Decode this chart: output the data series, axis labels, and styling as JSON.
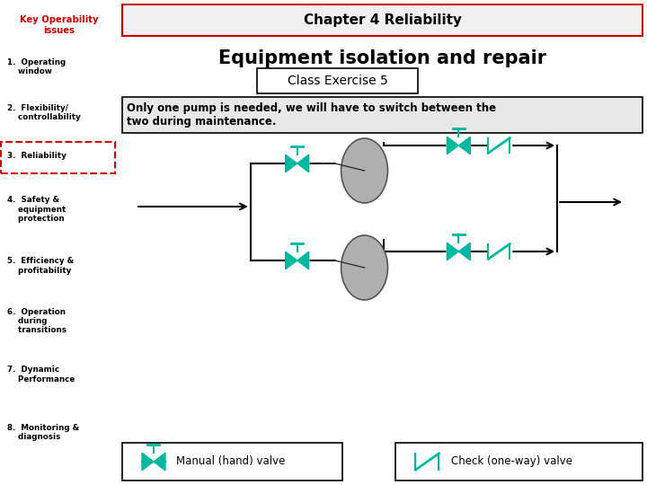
{
  "left_panel_bg": "#d8d8f0",
  "right_panel_bg": "#ffffff",
  "header_bg": "#f0f0f0",
  "header_border": "#cc0000",
  "header_text": "Chapter 4 Reliability",
  "title_text": "Equipment isolation and repair",
  "subtitle_text": "Class Exercise 5",
  "description_text": "Only one pump is needed, we will have to switch between the\ntwo during maintenance.",
  "left_title": "Key Operability\nissues",
  "left_title_color": "#cc0000",
  "left_items": [
    "1.  Operating\n    window",
    "2.  Flexibility/\n    controllability",
    "3.  Reliability",
    "4.  Safety &\n    equipment\n    protection",
    "5.  Efficiency &\n    profitability",
    "6.  Operation\n    during\n    transitions",
    "7.  Dynamic\n    Performance",
    "8.  Monitoring &\n    diagnosis"
  ],
  "highlighted_item_index": 2,
  "valve_color": "#00b8a0",
  "pipe_color": "#000000",
  "pump_color": "#b0b0b0",
  "legend_manual_text": "Manual (hand) valve",
  "legend_check_text": "Check (one-way) valve"
}
